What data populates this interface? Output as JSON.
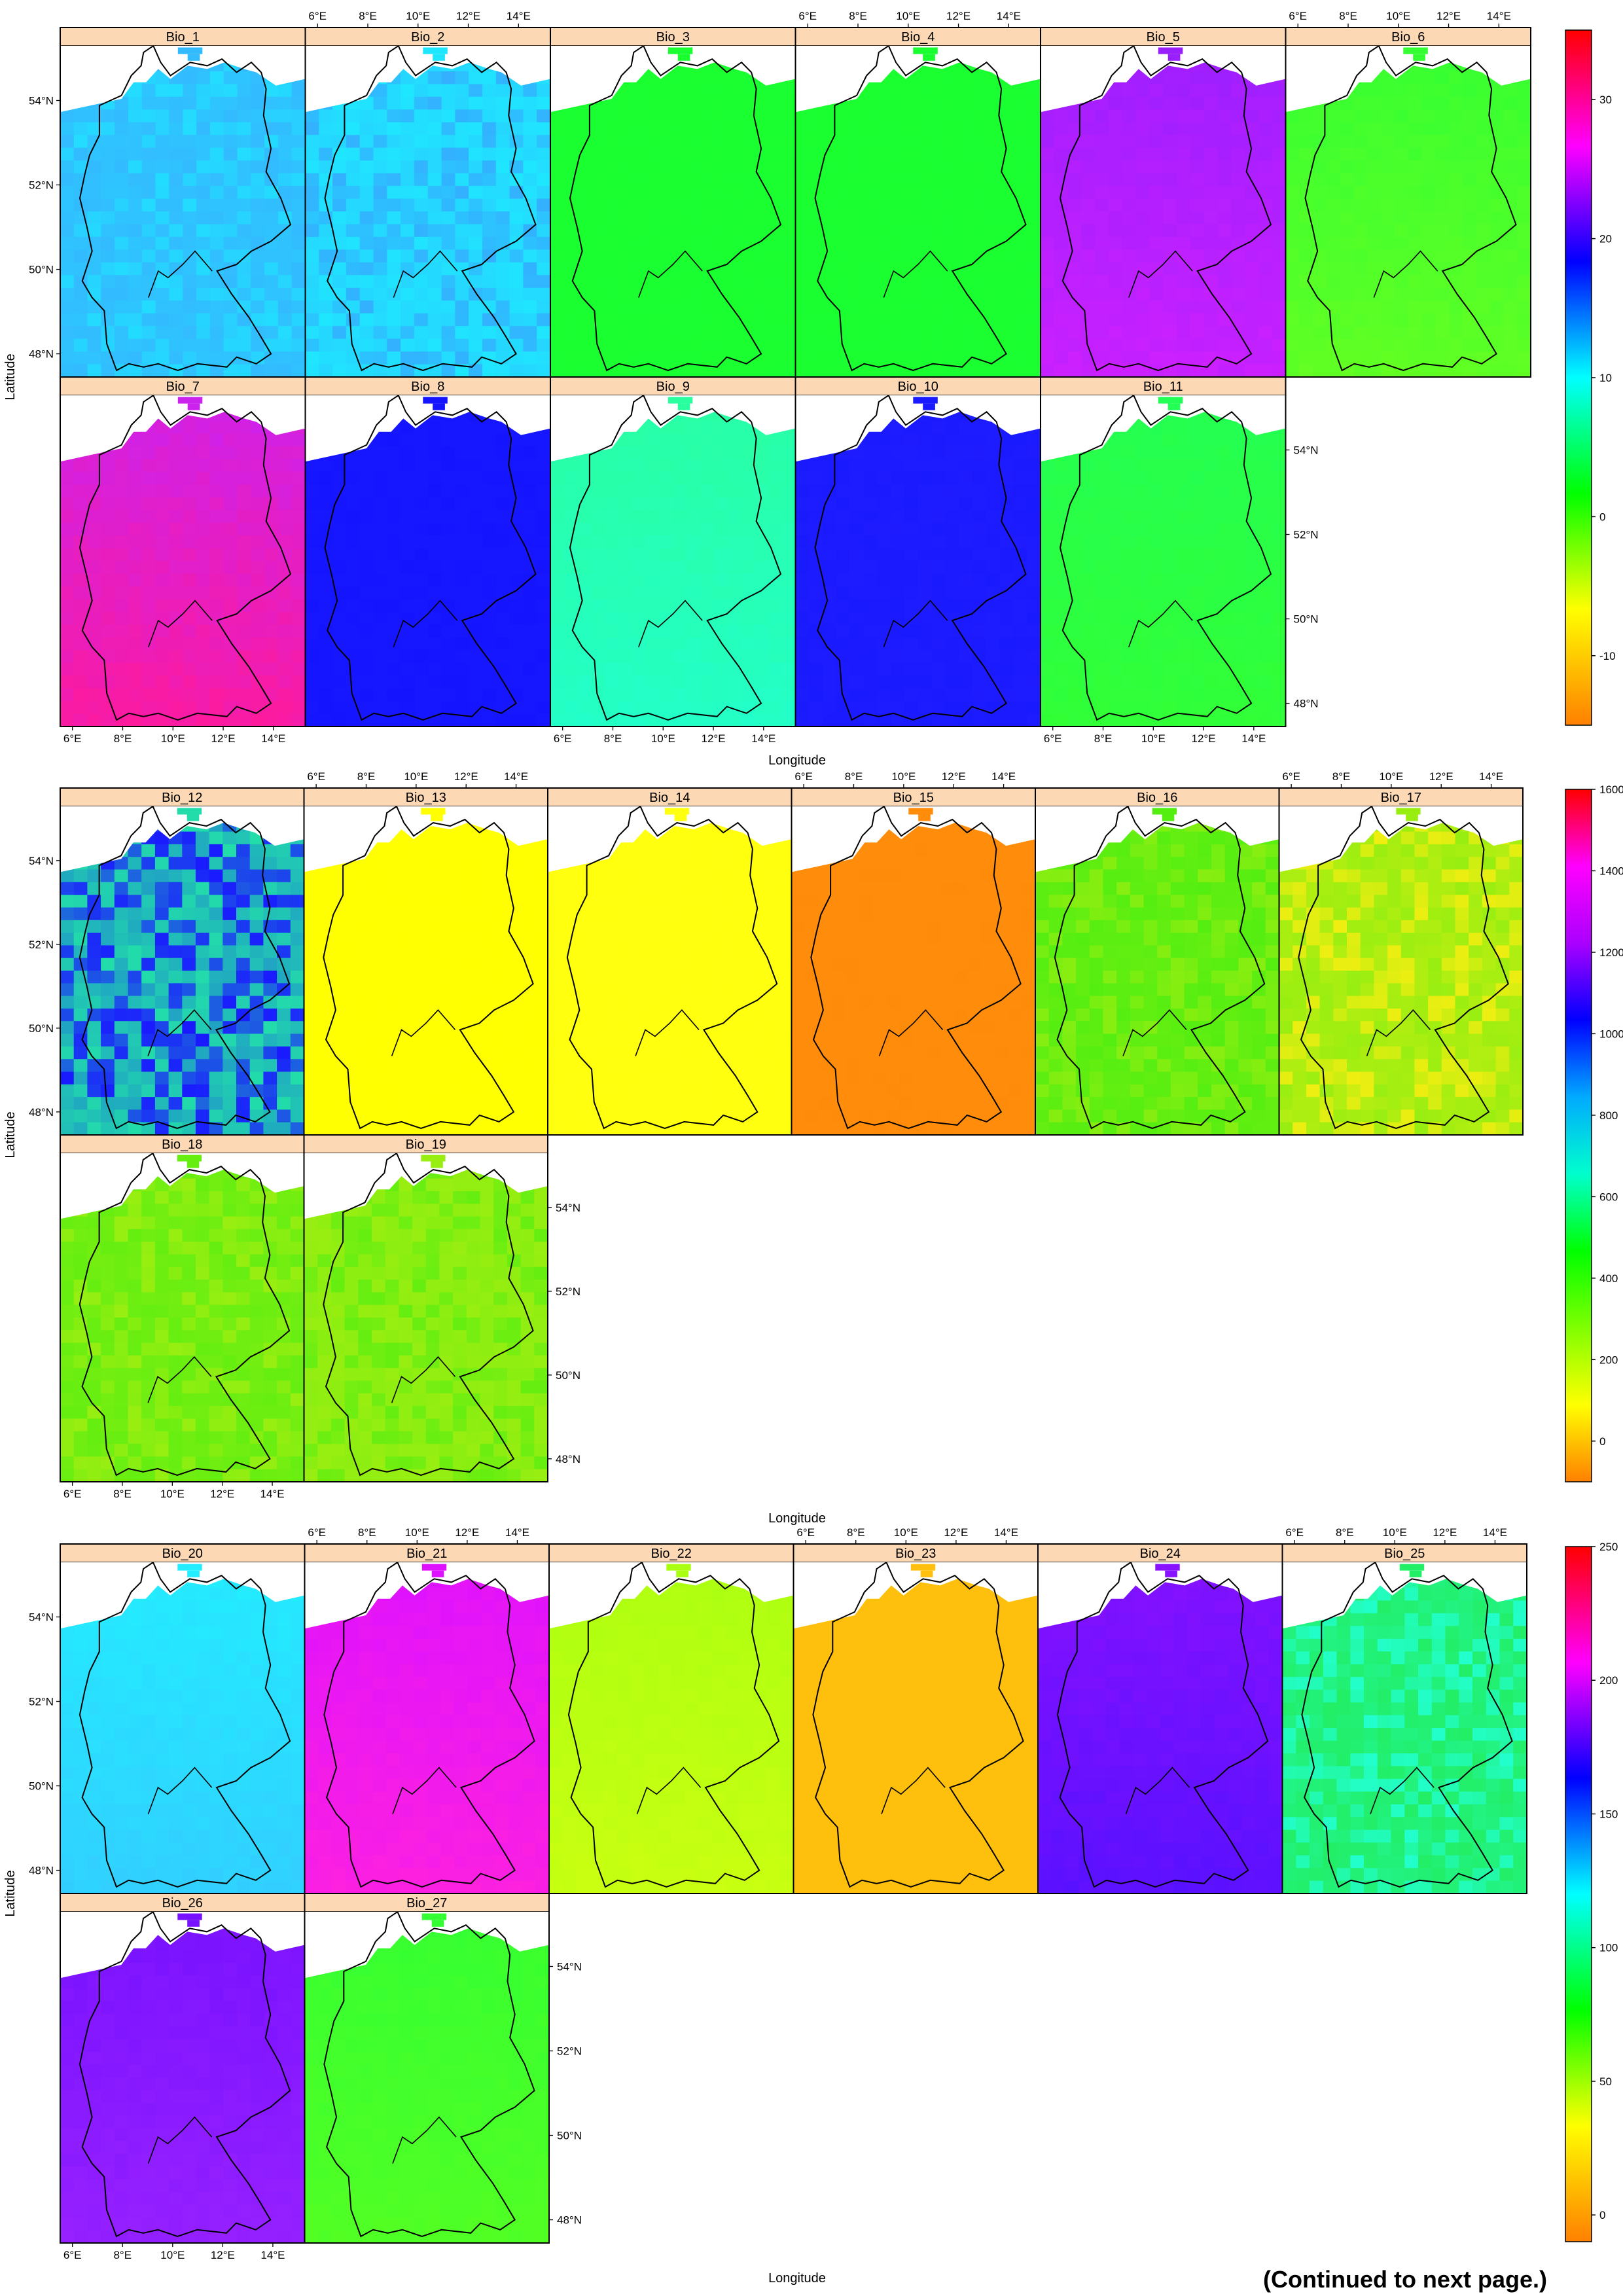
{
  "footer_note": "(Continued to next page.)",
  "colors": {
    "strip": "#fcd9b4",
    "frame": "#000000",
    "sea": "#ffffff"
  },
  "chart_data": [
    {
      "type": "heatmap",
      "xlabel": "Longitude",
      "ylabel": "Latitude",
      "x_ticks": [
        "6°E",
        "8°E",
        "10°E",
        "12°E",
        "14°E"
      ],
      "y_ticks": [
        "48°N",
        "50°N",
        "52°N",
        "54°N"
      ],
      "colorbar": {
        "min": -15,
        "max": 35,
        "ticks": [
          -10,
          0,
          10,
          20,
          30
        ],
        "palette": [
          "#ff8000",
          "#ffff00",
          "#00ff00",
          "#00ffff",
          "#0000ff",
          "#ff00ff",
          "#ff0000"
        ]
      },
      "panels": [
        {
          "name": "Bio_1",
          "main": "#33bbff",
          "alt": "#22ddff",
          "pattern": "patchy"
        },
        {
          "name": "Bio_2",
          "main": "#1fe6ff",
          "alt": "#33b0ff",
          "pattern": "patchy"
        },
        {
          "name": "Bio_3",
          "main": "#19ff30",
          "alt": "#28ff3a",
          "pattern": "flat"
        },
        {
          "name": "Bio_4",
          "main": "#19ff30",
          "alt": "#28ff3a",
          "pattern": "flat"
        },
        {
          "name": "Bio_5",
          "main": "#9a1fff",
          "alt": "#d020ff",
          "pattern": "gradient"
        },
        {
          "name": "Bio_6",
          "main": "#33ff33",
          "alt": "#66ff22",
          "pattern": "gradient"
        },
        {
          "name": "Bio_7",
          "main": "#cc22ee",
          "alt": "#ff1a99",
          "pattern": "gradient"
        },
        {
          "name": "Bio_8",
          "main": "#1414ff",
          "alt": "#2a2aff",
          "pattern": "flat"
        },
        {
          "name": "Bio_9",
          "main": "#2affa0",
          "alt": "#22ffcc",
          "pattern": "gradient"
        },
        {
          "name": "Bio_10",
          "main": "#1a1aff",
          "alt": "#3322ff",
          "pattern": "flat"
        },
        {
          "name": "Bio_11",
          "main": "#22ff55",
          "alt": "#33ff33",
          "pattern": "gradient"
        }
      ]
    },
    {
      "type": "heatmap",
      "xlabel": "Longitude",
      "ylabel": "Latitude",
      "x_ticks": [
        "6°E",
        "8°E",
        "10°E",
        "12°E",
        "14°E"
      ],
      "y_ticks": [
        "48°N",
        "50°N",
        "52°N",
        "54°N"
      ],
      "colorbar": {
        "min": -100,
        "max": 1600,
        "ticks": [
          0,
          200,
          400,
          600,
          800,
          1000,
          1200,
          1400,
          1600
        ],
        "palette": [
          "#ff8000",
          "#ffff00",
          "#80ff00",
          "#00ff00",
          "#00ffcc",
          "#00aaff",
          "#0000ff",
          "#aa00ff",
          "#ff00ff",
          "#ff0000"
        ]
      },
      "panels": [
        {
          "name": "Bio_12",
          "main": "#22ddaa",
          "alt": "#1a1aff",
          "pattern": "patchy"
        },
        {
          "name": "Bio_13",
          "main": "#ffff00",
          "alt": "#ffff10",
          "pattern": "flat"
        },
        {
          "name": "Bio_14",
          "main": "#ffff10",
          "alt": "#ffff00",
          "pattern": "flat"
        },
        {
          "name": "Bio_15",
          "main": "#ff8c0a",
          "alt": "#ff880c",
          "pattern": "flat"
        },
        {
          "name": "Bio_16",
          "main": "#55ee11",
          "alt": "#88ee11",
          "pattern": "patchy"
        },
        {
          "name": "Bio_17",
          "main": "#99ee11",
          "alt": "#eeee11",
          "pattern": "patchy"
        },
        {
          "name": "Bio_18",
          "main": "#66ee11",
          "alt": "#99ee11",
          "pattern": "patchy"
        },
        {
          "name": "Bio_19",
          "main": "#99ee11",
          "alt": "#66ee11",
          "pattern": "patchy"
        }
      ]
    },
    {
      "type": "heatmap",
      "xlabel": "Longitude",
      "ylabel": "Latitude",
      "x_ticks": [
        "6°E",
        "8°E",
        "10°E",
        "12°E",
        "14°E"
      ],
      "y_ticks": [
        "48°N",
        "50°N",
        "52°N",
        "54°N"
      ],
      "colorbar": {
        "min": -10,
        "max": 250,
        "ticks": [
          0,
          50,
          100,
          150,
          200,
          250
        ],
        "palette": [
          "#ff8000",
          "#ffff00",
          "#00ff00",
          "#00ffff",
          "#0000ff",
          "#ff00ff",
          "#ff0000"
        ]
      },
      "panels": [
        {
          "name": "Bio_20",
          "main": "#22eeff",
          "alt": "#33ccff",
          "pattern": "gradient"
        },
        {
          "name": "Bio_21",
          "main": "#dd11ff",
          "alt": "#ff22dd",
          "pattern": "gradient"
        },
        {
          "name": "Bio_22",
          "main": "#aaff11",
          "alt": "#ccff11",
          "pattern": "gradient"
        },
        {
          "name": "Bio_23",
          "main": "#ffc00d",
          "alt": "#ffb80d",
          "pattern": "flat"
        },
        {
          "name": "Bio_24",
          "main": "#8811ff",
          "alt": "#5511ff",
          "pattern": "gradient"
        },
        {
          "name": "Bio_25",
          "main": "#22ee66",
          "alt": "#22ffcc",
          "pattern": "patchy"
        },
        {
          "name": "Bio_26",
          "main": "#7711ff",
          "alt": "#9922ff",
          "pattern": "gradient"
        },
        {
          "name": "Bio_27",
          "main": "#33ff33",
          "alt": "#55ff22",
          "pattern": "gradient"
        }
      ]
    }
  ]
}
